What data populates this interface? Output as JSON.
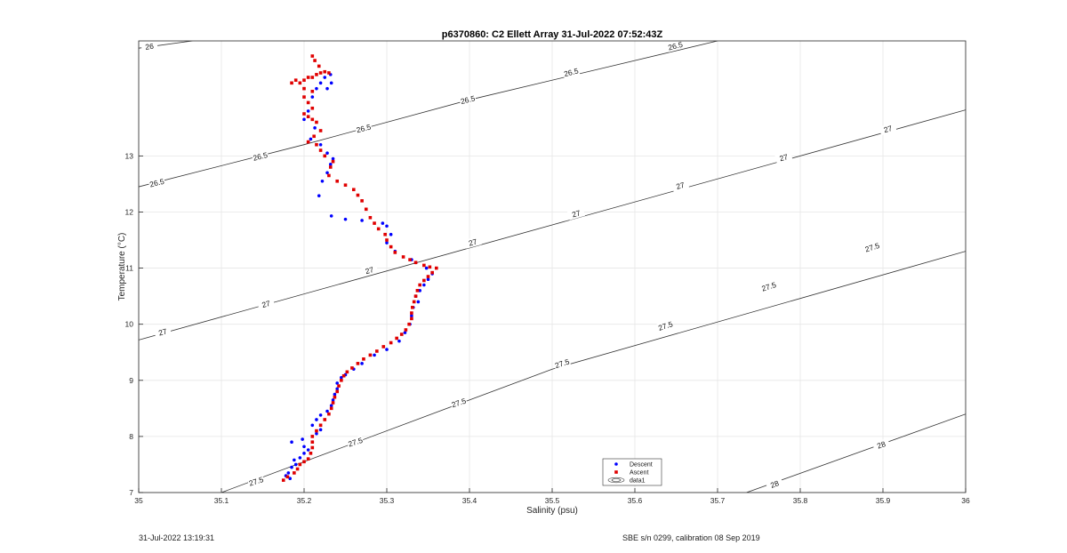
{
  "chart_data": {
    "type": "scatter",
    "title": "p6370860: C2 Ellett Array 31-Jul-2022 07:52:43Z",
    "xlabel": "Salinity (psu)",
    "ylabel": "Temperature (°C)",
    "xlim": [
      35,
      36
    ],
    "ylim": [
      7,
      15.05
    ],
    "xticks": [
      "35",
      "35.1",
      "35.2",
      "35.3",
      "35.4",
      "35.5",
      "35.6",
      "35.7",
      "35.8",
      "35.9",
      "36"
    ],
    "xtick_values": [
      35,
      35.1,
      35.2,
      35.3,
      35.4,
      35.5,
      35.6,
      35.7,
      35.8,
      35.9,
      36
    ],
    "yticks": [
      "7",
      "8",
      "9",
      "10",
      "11",
      "12",
      "13"
    ],
    "ytick_values": [
      7,
      8,
      9,
      10,
      11,
      12,
      13
    ],
    "grid": true,
    "legend": {
      "placement": "bottom-center",
      "entries": [
        "Descent",
        "Ascent",
        "data1"
      ]
    },
    "contours": [
      {
        "label": "26",
        "labels_at": [
          [
            35.013,
            14.95
          ]
        ],
        "points": [
          [
            35.0,
            14.92
          ],
          [
            35.065,
            15.05
          ]
        ]
      },
      {
        "label": "26.5",
        "labels_at": [
          [
            35.022,
            12.52
          ],
          [
            35.147,
            12.99
          ],
          [
            35.272,
            13.49
          ],
          [
            35.398,
            14.0
          ],
          [
            35.523,
            14.49
          ],
          [
            35.649,
            14.96
          ]
        ],
        "points": [
          [
            35.0,
            12.45
          ],
          [
            35.2,
            13.2
          ],
          [
            35.4,
            14.0
          ],
          [
            35.7,
            15.05
          ]
        ]
      },
      {
        "label": "27",
        "labels_at": [
          [
            35.029,
            9.86
          ],
          [
            35.154,
            10.36
          ],
          [
            35.279,
            10.96
          ],
          [
            35.404,
            11.46
          ],
          [
            35.529,
            11.97
          ],
          [
            35.655,
            12.47
          ],
          [
            35.78,
            12.97
          ],
          [
            35.906,
            13.48
          ]
        ],
        "points": [
          [
            35.0,
            9.72
          ],
          [
            35.5,
            11.77
          ],
          [
            36.0,
            13.82
          ]
        ]
      },
      {
        "label": "27.5",
        "labels_at": [
          [
            35.142,
            7.2
          ],
          [
            35.262,
            7.9
          ],
          [
            35.387,
            8.6
          ],
          [
            35.512,
            9.3
          ],
          [
            35.637,
            9.97
          ],
          [
            35.762,
            10.67
          ],
          [
            35.887,
            11.37
          ]
        ],
        "points": [
          [
            35.1,
            7.0
          ],
          [
            35.5,
            9.2
          ],
          [
            36.0,
            11.3
          ]
        ]
      },
      {
        "label": "28",
        "labels_at": [
          [
            35.769,
            7.15
          ],
          [
            35.898,
            7.85
          ]
        ],
        "points": [
          [
            35.735,
            7.0
          ],
          [
            36.0,
            8.4
          ]
        ]
      }
    ],
    "series": [
      {
        "name": "Descent",
        "color": "#0000ff",
        "points": [
          [
            35.183,
            7.25
          ],
          [
            35.178,
            7.3
          ],
          [
            35.181,
            7.35
          ],
          [
            35.185,
            7.45
          ],
          [
            35.19,
            7.5
          ],
          [
            35.188,
            7.58
          ],
          [
            35.195,
            7.62
          ],
          [
            35.2,
            7.7
          ],
          [
            35.205,
            7.76
          ],
          [
            35.2,
            7.82
          ],
          [
            35.185,
            7.9
          ],
          [
            35.198,
            7.95
          ],
          [
            35.21,
            7.9
          ],
          [
            35.215,
            8.05
          ],
          [
            35.22,
            8.12
          ],
          [
            35.21,
            8.2
          ],
          [
            35.215,
            8.3
          ],
          [
            35.22,
            8.38
          ],
          [
            35.228,
            8.45
          ],
          [
            35.233,
            8.55
          ],
          [
            35.235,
            8.65
          ],
          [
            35.237,
            8.75
          ],
          [
            35.24,
            8.85
          ],
          [
            35.24,
            8.95
          ],
          [
            35.245,
            9.05
          ],
          [
            35.25,
            9.1
          ],
          [
            35.26,
            9.2
          ],
          [
            35.27,
            9.3
          ],
          [
            35.285,
            9.45
          ],
          [
            35.3,
            9.55
          ],
          [
            35.315,
            9.7
          ],
          [
            35.322,
            9.85
          ],
          [
            35.328,
            10.0
          ],
          [
            35.33,
            10.15
          ],
          [
            35.332,
            10.3
          ],
          [
            35.338,
            10.4
          ],
          [
            35.335,
            10.5
          ],
          [
            35.34,
            10.6
          ],
          [
            35.345,
            10.7
          ],
          [
            35.35,
            10.8
          ],
          [
            35.355,
            10.9
          ],
          [
            35.348,
            11.0
          ],
          [
            35.335,
            11.1
          ],
          [
            35.33,
            11.15
          ],
          [
            35.31,
            11.3
          ],
          [
            35.3,
            11.45
          ],
          [
            35.305,
            11.6
          ],
          [
            35.3,
            11.75
          ],
          [
            35.295,
            11.8
          ],
          [
            35.27,
            11.85
          ],
          [
            35.25,
            11.87
          ],
          [
            35.233,
            11.93
          ],
          [
            35.218,
            12.29
          ],
          [
            35.222,
            12.55
          ],
          [
            35.228,
            12.7
          ],
          [
            35.232,
            12.85
          ],
          [
            35.235,
            12.95
          ],
          [
            35.228,
            13.05
          ],
          [
            35.22,
            13.2
          ],
          [
            35.208,
            13.3
          ],
          [
            35.213,
            13.5
          ],
          [
            35.2,
            13.65
          ],
          [
            35.205,
            13.8
          ],
          [
            35.21,
            14.05
          ],
          [
            35.215,
            14.2
          ],
          [
            35.22,
            14.3
          ],
          [
            35.225,
            14.4
          ],
          [
            35.232,
            14.45
          ],
          [
            35.233,
            14.3
          ],
          [
            35.228,
            14.2
          ]
        ]
      },
      {
        "name": "Ascent",
        "color": "#e00000",
        "points": [
          [
            35.175,
            7.22
          ],
          [
            35.18,
            7.28
          ],
          [
            35.188,
            7.35
          ],
          [
            35.192,
            7.42
          ],
          [
            35.195,
            7.5
          ],
          [
            35.2,
            7.55
          ],
          [
            35.205,
            7.6
          ],
          [
            35.208,
            7.7
          ],
          [
            35.21,
            7.8
          ],
          [
            35.21,
            7.9
          ],
          [
            35.21,
            8.0
          ],
          [
            35.215,
            8.1
          ],
          [
            35.22,
            8.2
          ],
          [
            35.225,
            8.3
          ],
          [
            35.23,
            8.4
          ],
          [
            35.233,
            8.5
          ],
          [
            35.235,
            8.6
          ],
          [
            35.237,
            8.7
          ],
          [
            35.24,
            8.8
          ],
          [
            35.242,
            8.9
          ],
          [
            35.245,
            9.0
          ],
          [
            35.248,
            9.08
          ],
          [
            35.252,
            9.15
          ],
          [
            35.258,
            9.22
          ],
          [
            35.265,
            9.3
          ],
          [
            35.272,
            9.38
          ],
          [
            35.28,
            9.45
          ],
          [
            35.288,
            9.52
          ],
          [
            35.296,
            9.6
          ],
          [
            35.305,
            9.67
          ],
          [
            35.312,
            9.75
          ],
          [
            35.318,
            9.82
          ],
          [
            35.323,
            9.9
          ],
          [
            35.327,
            10.0
          ],
          [
            35.33,
            10.1
          ],
          [
            35.33,
            10.2
          ],
          [
            35.331,
            10.3
          ],
          [
            35.333,
            10.4
          ],
          [
            35.335,
            10.5
          ],
          [
            35.337,
            10.6
          ],
          [
            35.34,
            10.7
          ],
          [
            35.345,
            10.78
          ],
          [
            35.35,
            10.85
          ],
          [
            35.355,
            10.92
          ],
          [
            35.36,
            11.0
          ],
          [
            35.352,
            11.02
          ],
          [
            35.345,
            11.05
          ],
          [
            35.335,
            11.1
          ],
          [
            35.328,
            11.15
          ],
          [
            35.32,
            11.2
          ],
          [
            35.31,
            11.28
          ],
          [
            35.305,
            11.38
          ],
          [
            35.3,
            11.5
          ],
          [
            35.298,
            11.6
          ],
          [
            35.29,
            11.7
          ],
          [
            35.285,
            11.8
          ],
          [
            35.28,
            11.9
          ],
          [
            35.275,
            12.05
          ],
          [
            35.27,
            12.2
          ],
          [
            35.265,
            12.3
          ],
          [
            35.26,
            12.4
          ],
          [
            35.25,
            12.48
          ],
          [
            35.24,
            12.55
          ],
          [
            35.23,
            12.65
          ],
          [
            35.232,
            12.8
          ],
          [
            35.235,
            12.9
          ],
          [
            35.225,
            13.0
          ],
          [
            35.22,
            13.1
          ],
          [
            35.215,
            13.2
          ],
          [
            35.205,
            13.25
          ],
          [
            35.212,
            13.35
          ],
          [
            35.22,
            13.45
          ],
          [
            35.215,
            13.6
          ],
          [
            35.21,
            13.65
          ],
          [
            35.205,
            13.7
          ],
          [
            35.2,
            13.75
          ],
          [
            35.21,
            13.85
          ],
          [
            35.205,
            13.95
          ],
          [
            35.2,
            14.05
          ],
          [
            35.21,
            14.15
          ],
          [
            35.2,
            14.2
          ],
          [
            35.195,
            14.3
          ],
          [
            35.19,
            14.35
          ],
          [
            35.185,
            14.3
          ],
          [
            35.2,
            14.35
          ],
          [
            35.21,
            14.4
          ],
          [
            35.215,
            14.45
          ],
          [
            35.22,
            14.48
          ],
          [
            35.225,
            14.5
          ],
          [
            35.23,
            14.48
          ],
          [
            35.218,
            14.6
          ],
          [
            35.213,
            14.7
          ],
          [
            35.21,
            14.78
          ],
          [
            35.205,
            14.4
          ]
        ]
      }
    ]
  },
  "footer": {
    "timestamp": "31-Jul-2022 13:19:31",
    "calibration": "SBE s/n 0299, calibration 08 Sep 2019"
  }
}
